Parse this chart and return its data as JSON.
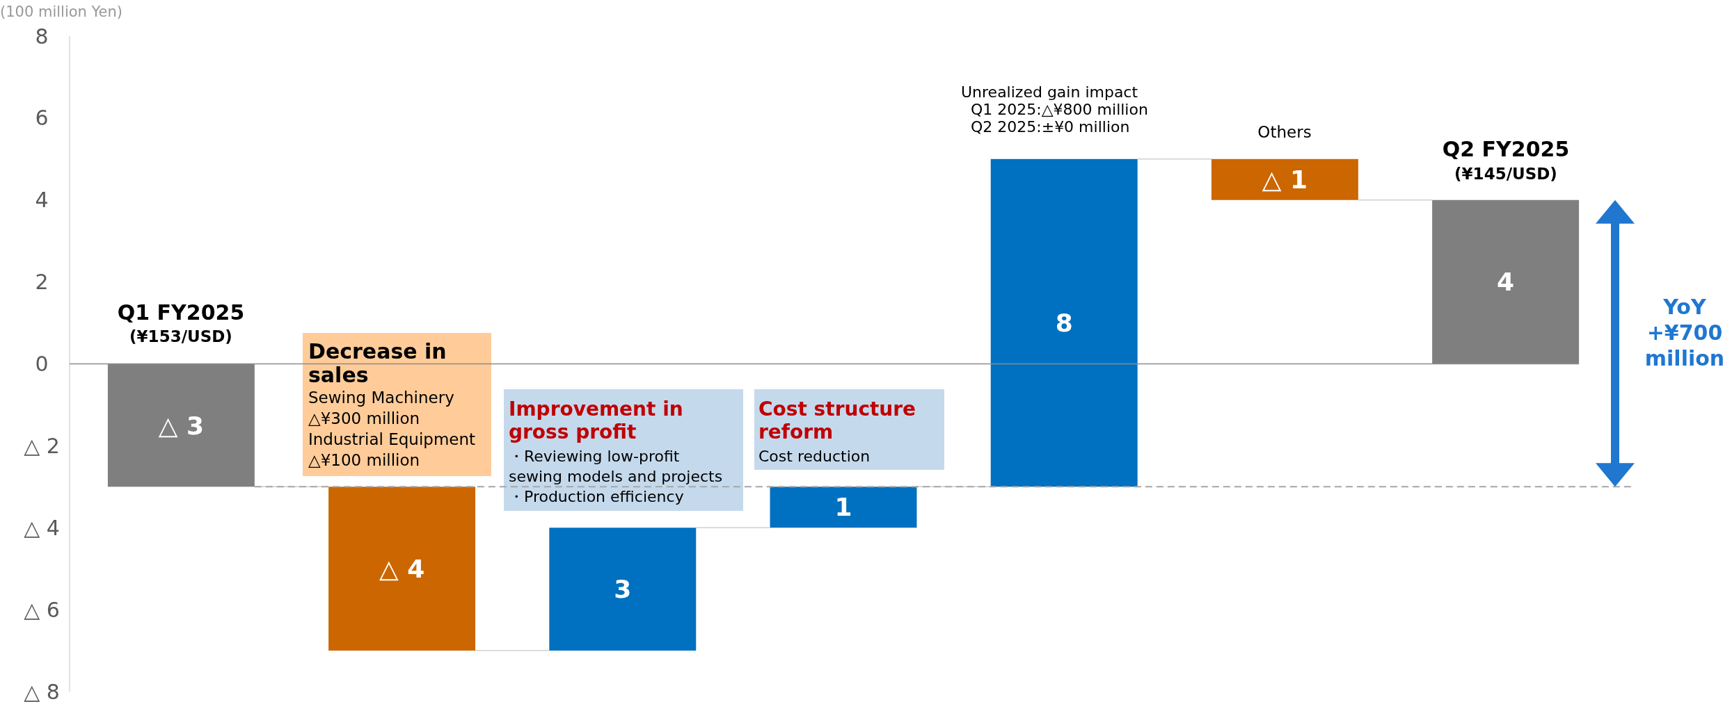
{
  "chart_data": {
    "type": "bar",
    "ylabel": "(100 million Yen)",
    "categories": [
      null,
      null,
      null,
      null,
      null,
      null,
      null
    ],
    "values": [
      -3,
      -4,
      3,
      1,
      8,
      -1,
      4
    ],
    "base": [
      0,
      -3,
      -7,
      -4,
      -3,
      5,
      0
    ],
    "colors": [
      "#7f7f7f",
      "#cc6600",
      "#0070c0",
      "#0070c0",
      "#0070c0",
      "#cc6600",
      "#7f7f7f"
    ],
    "value_labels": [
      "△ 3",
      "△ 4",
      "3",
      "1",
      "8",
      "△ 1",
      "4"
    ],
    "ylim": [
      -8,
      8
    ],
    "yticks": [
      {
        "value": -8,
        "label": "△ 8"
      },
      {
        "value": -6,
        "label": "△ 6"
      },
      {
        "value": -4,
        "label": "△ 4"
      },
      {
        "value": -2,
        "label": "△ 2"
      },
      0,
      2,
      4,
      6,
      8
    ],
    "ref_lines": [
      {
        "axis": "y",
        "value": -3,
        "color": "#a6a6a6",
        "line_style": "dashed"
      },
      {
        "axis": "y",
        "value": 0,
        "color": "#8c8c8c",
        "line_style": "solid"
      }
    ],
    "annotations": [
      "Q1 FY2025",
      "(¥153/USD)",
      "Decrease in\nsales",
      "Sewing Machinery\n△¥300 million\nIndustrial Equipment\n△¥100 million",
      "Improvement in\ngross profit",
      "・Reviewing low-profit\nsewing models and projects\n・Production efficiency",
      "Cost structure\nreform",
      "Cost reduction",
      "Unrealized gain impact\n  Q1 2025:△¥800 million\n  Q2 2025:±¥0 million",
      "Others",
      "Q2 FY2025",
      "(¥145/USD)",
      "YoY\n+¥700\nmillion"
    ]
  }
}
